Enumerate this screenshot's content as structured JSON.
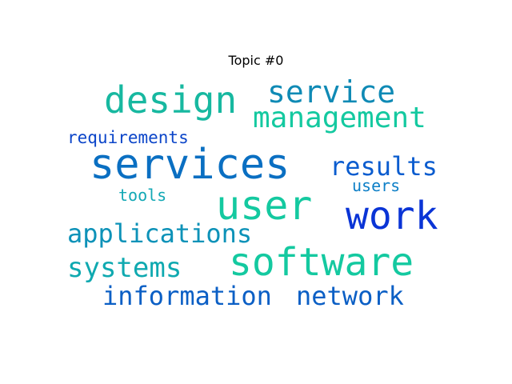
{
  "title": "Topic #0",
  "words": {
    "services": {
      "text": "services",
      "color": "#0a6fc2"
    },
    "design": {
      "text": "design",
      "color": "#17b8a0"
    },
    "user": {
      "text": "user",
      "color": "#14c9a0"
    },
    "software": {
      "text": "software",
      "color": "#14c9a0"
    },
    "work": {
      "text": "work",
      "color": "#0a34d6"
    },
    "service": {
      "text": "service",
      "color": "#0f8ab5"
    },
    "management": {
      "text": "management",
      "color": "#14c9a0"
    },
    "results": {
      "text": "results",
      "color": "#0a5ccf"
    },
    "applications": {
      "text": "applications",
      "color": "#0d92b8"
    },
    "systems": {
      "text": "systems",
      "color": "#0fa9b0"
    },
    "information": {
      "text": "information",
      "color": "#0b5fc5"
    },
    "network": {
      "text": "network",
      "color": "#0b5fc5"
    },
    "requirements": {
      "text": "requirements",
      "color": "#0b45c9"
    },
    "tools": {
      "text": "tools",
      "color": "#12a8b5"
    },
    "users": {
      "text": "users",
      "color": "#0d7fc7"
    }
  }
}
